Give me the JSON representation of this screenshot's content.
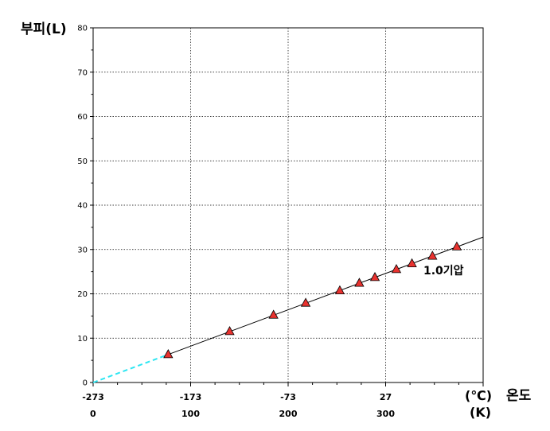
{
  "chart_data": {
    "type": "line",
    "ylabel": "부피(L)",
    "xlabel": "온도",
    "unit_celsius": "(℃)",
    "unit_kelvin": "(K)",
    "annotation": "1.0기압",
    "xlim_kelvin": [
      0,
      400
    ],
    "ylim": [
      0,
      80
    ],
    "grid": true,
    "y_ticks": [
      0,
      10,
      20,
      30,
      40,
      50,
      60,
      70,
      80
    ],
    "x_ticks_celsius": [
      {
        "k": 0,
        "label": "-273"
      },
      {
        "k": 100,
        "label": "-173"
      },
      {
        "k": 200,
        "label": "-73"
      },
      {
        "k": 300,
        "label": "27"
      }
    ],
    "x_ticks_kelvin": [
      {
        "k": 0,
        "label": "0"
      },
      {
        "k": 100,
        "label": "100"
      },
      {
        "k": 200,
        "label": "200"
      },
      {
        "k": 300,
        "label": "300"
      }
    ],
    "series": [
      {
        "marker": "triangle",
        "color": "#e8322f",
        "points": [
          {
            "k": 77,
            "v": 6.3
          },
          {
            "k": 140,
            "v": 11.5
          },
          {
            "k": 185,
            "v": 15.2
          },
          {
            "k": 218,
            "v": 17.9
          },
          {
            "k": 253,
            "v": 20.7
          },
          {
            "k": 273,
            "v": 22.4
          },
          {
            "k": 289,
            "v": 23.7
          },
          {
            "k": 311,
            "v": 25.5
          },
          {
            "k": 327,
            "v": 26.8
          },
          {
            "k": 348,
            "v": 28.5
          },
          {
            "k": 373,
            "v": 30.6
          }
        ]
      }
    ],
    "fit_line": {
      "color": "#000000",
      "from_k": 77,
      "to_k": 400,
      "slope": 0.082
    },
    "extrapolation": {
      "color": "#2ee6f2",
      "style": "dashed",
      "from_k": 0,
      "to_k": 77
    }
  }
}
